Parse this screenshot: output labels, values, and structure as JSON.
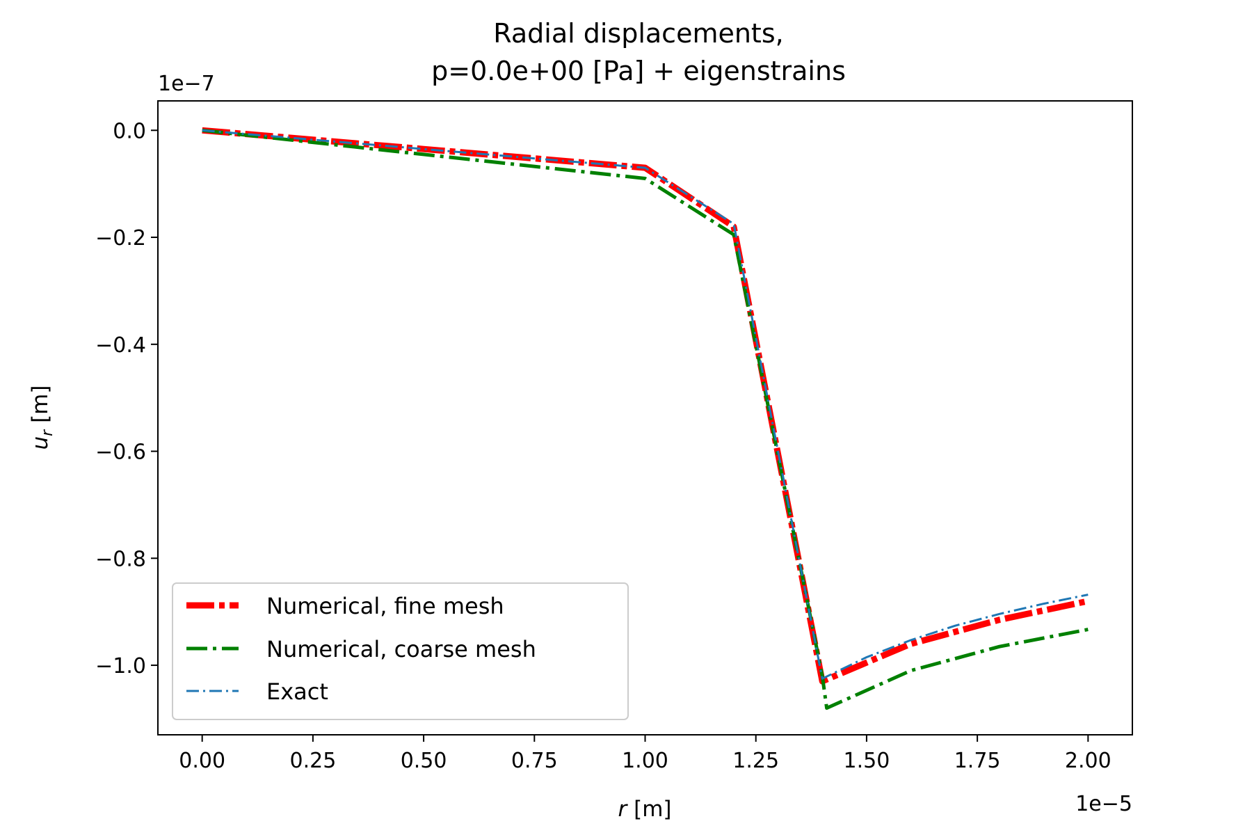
{
  "chart_data": {
    "type": "line",
    "title_line1": "Radial displacements,",
    "title_line2": "p=0.0e+00 [Pa] + eigenstrains",
    "xlabel_var": "r",
    "xlabel_unit": " [m]",
    "ylabel_var": "u",
    "ylabel_sub": "r",
    "ylabel_unit": "  [m]",
    "x_offset": "1e−5",
    "y_offset": "1e−7",
    "xlim": [
      -0.1,
      2.1
    ],
    "ylim": [
      -1.13,
      0.055
    ],
    "x_scale_note": "x values in units of 1e-5 m",
    "y_scale_note": "y values in units of 1e-7 m",
    "x_ticks": [
      0.0,
      0.25,
      0.5,
      0.75,
      1.0,
      1.25,
      1.5,
      1.75,
      2.0
    ],
    "x_tick_labels": [
      "0.00",
      "0.25",
      "0.50",
      "0.75",
      "1.00",
      "1.25",
      "1.50",
      "1.75",
      "2.00"
    ],
    "y_ticks": [
      0.0,
      -0.2,
      -0.4,
      -0.6,
      -0.8,
      -1.0
    ],
    "y_tick_labels": [
      "0.0",
      "−0.2",
      "−0.4",
      "−0.6",
      "−0.8",
      "−1.0"
    ],
    "grid": false,
    "legend_position": "lower-left",
    "series": [
      {
        "name": "Numerical, fine mesh",
        "color": "#ff0000",
        "style": "dashdot-thick",
        "x": [
          0.0,
          0.5,
          1.0,
          1.2,
          1.4,
          1.6,
          1.8,
          2.0
        ],
        "y": [
          0.0,
          -0.035,
          -0.07,
          -0.18,
          -1.03,
          -0.96,
          -0.915,
          -0.88
        ]
      },
      {
        "name": "Numerical, coarse mesh",
        "color": "#008000",
        "style": "dashdot-medium",
        "x": [
          0.0,
          0.5,
          1.0,
          1.2,
          1.4,
          1.41,
          1.6,
          1.8,
          2.0
        ],
        "y": [
          0.0,
          -0.045,
          -0.09,
          -0.195,
          -1.02,
          -1.08,
          -1.01,
          -0.965,
          -0.933
        ]
      },
      {
        "name": "Exact",
        "color": "#1f77b4",
        "style": "dashdot-thin",
        "x": [
          0.0,
          0.5,
          1.0,
          1.2,
          1.4,
          1.5,
          1.6,
          1.7,
          1.8,
          1.9,
          2.0
        ],
        "y": [
          0.0,
          -0.035,
          -0.07,
          -0.175,
          -1.025,
          -0.985,
          -0.953,
          -0.926,
          -0.904,
          -0.885,
          -0.868
        ]
      }
    ]
  }
}
